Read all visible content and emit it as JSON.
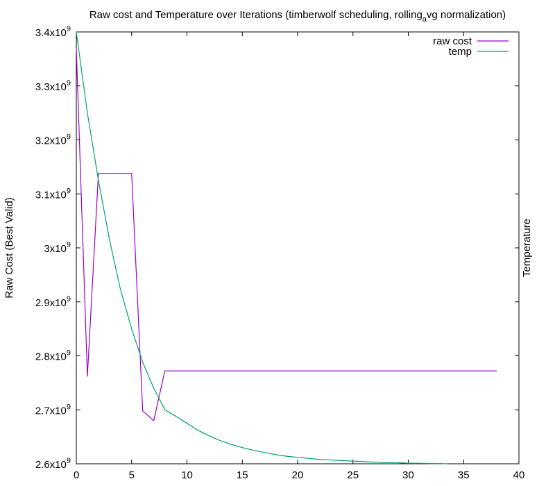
{
  "chart_data": {
    "type": "line",
    "title": "Raw cost and Temperature over Iterations (timberwolf scheduling, rolling",
    "title_sub": "a",
    "title_tail": "vg normalization)",
    "ylabel": "Raw Cost (Best Valid)",
    "y2label": "Temperature",
    "xlabel": "",
    "xlim": [
      0,
      40
    ],
    "ylim": [
      2600000000,
      3400000000
    ],
    "x_ticks": [
      "0",
      "5",
      "10",
      "15",
      "20",
      "25",
      "30",
      "35",
      "40"
    ],
    "y_ticks": [
      {
        "value": 2600000000,
        "mantissa": "2.6x10",
        "exp": "9"
      },
      {
        "value": 2700000000,
        "mantissa": "2.7x10",
        "exp": "9"
      },
      {
        "value": 2800000000,
        "mantissa": "2.8x10",
        "exp": "9"
      },
      {
        "value": 2900000000,
        "mantissa": "2.9x10",
        "exp": "9"
      },
      {
        "value": 3000000000,
        "mantissa": "3x10",
        "exp": "9"
      },
      {
        "value": 3100000000,
        "mantissa": "3.1x10",
        "exp": "9"
      },
      {
        "value": 3200000000,
        "mantissa": "3.2x10",
        "exp": "9"
      },
      {
        "value": 3300000000,
        "mantissa": "3.3x10",
        "exp": "9"
      },
      {
        "value": 3400000000,
        "mantissa": "3.4x10",
        "exp": "9"
      }
    ],
    "legend_position": "top-right",
    "grid": false,
    "series": [
      {
        "name": "raw cost",
        "color": "#9400d3",
        "x": [
          0,
          1,
          2,
          3,
          4,
          5,
          6,
          7,
          8,
          9,
          10,
          11,
          12,
          13,
          14,
          15,
          16,
          17,
          18,
          19,
          20,
          21,
          22,
          23,
          24,
          25,
          26,
          27,
          28,
          29,
          30,
          31,
          32,
          33,
          34,
          35,
          36,
          37,
          38
        ],
        "y": [
          3370000000,
          2762000000,
          3138000000,
          3138000000,
          3138000000,
          3138000000,
          2698000000,
          2680000000,
          2772000000,
          2772000000,
          2772000000,
          2772000000,
          2772000000,
          2772000000,
          2772000000,
          2772000000,
          2772000000,
          2772000000,
          2772000000,
          2772000000,
          2772000000,
          2772000000,
          2772000000,
          2772000000,
          2772000000,
          2772000000,
          2772000000,
          2772000000,
          2772000000,
          2772000000,
          2772000000,
          2772000000,
          2772000000,
          2772000000,
          2772000000,
          2772000000,
          2772000000,
          2772000000,
          2772000000
        ]
      },
      {
        "name": "temp",
        "color": "#009e73",
        "x": [
          0,
          1,
          2,
          3,
          4,
          5,
          6,
          7,
          8,
          9,
          10,
          11,
          12,
          13,
          14,
          15,
          16,
          17,
          18,
          19,
          20,
          21,
          22,
          23,
          24,
          25,
          26,
          27,
          28,
          29,
          30,
          31,
          32,
          33,
          33.5
        ],
        "y": [
          3400000000,
          3250000000,
          3125000000,
          3015000000,
          2922000000,
          2850000000,
          2788000000,
          2740000000,
          2700000000,
          2688000000,
          2675000000,
          2662000000,
          2652000000,
          2643000000,
          2636000000,
          2630000000,
          2625000000,
          2621000000,
          2617000000,
          2614000000,
          2612000000,
          2610000000,
          2608000000,
          2607000000,
          2606000000,
          2605000000,
          2604000000,
          2603000000,
          2602000000,
          2602000000,
          2601000000,
          2601000000,
          2600500000,
          2600300000,
          2600000000
        ]
      }
    ]
  }
}
